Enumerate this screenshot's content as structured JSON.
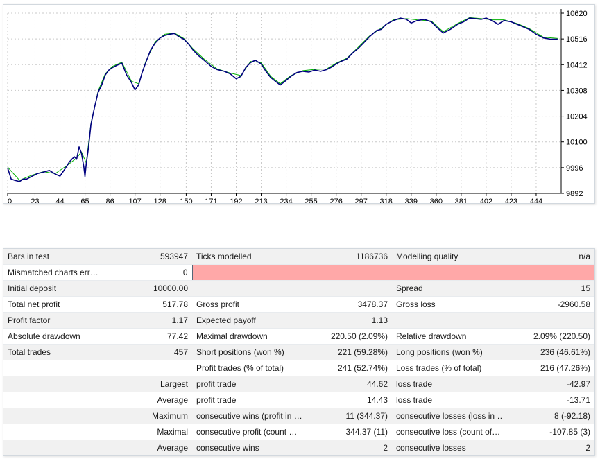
{
  "chart_data": {
    "type": "line",
    "xlim": [
      0,
      465
    ],
    "ylim": [
      9892,
      10620
    ],
    "x_ticks": [
      "0",
      "23",
      "44",
      "65",
      "86",
      "107",
      "128",
      "150",
      "171",
      "192",
      "213",
      "234",
      "255",
      "276",
      "297",
      "318",
      "339",
      "360",
      "381",
      "402",
      "423",
      "444"
    ],
    "y_ticks": [
      "10620",
      "10516",
      "10412",
      "10308",
      "10204",
      "10100",
      "9996",
      "9892"
    ],
    "series": [
      {
        "color": "#00007f",
        "points": [
          [
            0,
            9995
          ],
          [
            3,
            9950
          ],
          [
            6,
            9945
          ],
          [
            10,
            9940
          ],
          [
            13,
            9950
          ],
          [
            16,
            9950
          ],
          [
            20,
            9960
          ],
          [
            25,
            9972
          ],
          [
            30,
            9978
          ],
          [
            35,
            9985
          ],
          [
            40,
            9970
          ],
          [
            44,
            9962
          ],
          [
            48,
            9990
          ],
          [
            52,
            10020
          ],
          [
            56,
            10040
          ],
          [
            58,
            10030
          ],
          [
            60,
            10080
          ],
          [
            62,
            10055
          ],
          [
            64,
            10000
          ],
          [
            65,
            9960
          ],
          [
            66,
            10010
          ],
          [
            68,
            10080
          ],
          [
            70,
            10170
          ],
          [
            73,
            10240
          ],
          [
            76,
            10300
          ],
          [
            79,
            10330
          ],
          [
            82,
            10370
          ],
          [
            85,
            10390
          ],
          [
            88,
            10400
          ],
          [
            92,
            10410
          ],
          [
            96,
            10418
          ],
          [
            100,
            10370
          ],
          [
            104,
            10340
          ],
          [
            107,
            10310
          ],
          [
            110,
            10330
          ],
          [
            113,
            10380
          ],
          [
            116,
            10420
          ],
          [
            120,
            10470
          ],
          [
            124,
            10500
          ],
          [
            128,
            10520
          ],
          [
            132,
            10530
          ],
          [
            136,
            10535
          ],
          [
            140,
            10538
          ],
          [
            144,
            10525
          ],
          [
            148,
            10515
          ],
          [
            152,
            10495
          ],
          [
            156,
            10470
          ],
          [
            160,
            10450
          ],
          [
            165,
            10430
          ],
          [
            171,
            10405
          ],
          [
            176,
            10392
          ],
          [
            182,
            10385
          ],
          [
            187,
            10375
          ],
          [
            192,
            10355
          ],
          [
            196,
            10365
          ],
          [
            200,
            10400
          ],
          [
            204,
            10420
          ],
          [
            208,
            10430
          ],
          [
            213,
            10415
          ],
          [
            217,
            10385
          ],
          [
            221,
            10360
          ],
          [
            225,
            10345
          ],
          [
            229,
            10330
          ],
          [
            233,
            10345
          ],
          [
            238,
            10365
          ],
          [
            243,
            10380
          ],
          [
            248,
            10385
          ],
          [
            253,
            10382
          ],
          [
            258,
            10390
          ],
          [
            263,
            10385
          ],
          [
            268,
            10392
          ],
          [
            272,
            10402
          ],
          [
            276,
            10415
          ],
          [
            280,
            10425
          ],
          [
            285,
            10435
          ],
          [
            290,
            10460
          ],
          [
            295,
            10480
          ],
          [
            299,
            10500
          ],
          [
            304,
            10525
          ],
          [
            310,
            10550
          ],
          [
            314,
            10555
          ],
          [
            318,
            10575
          ],
          [
            324,
            10590
          ],
          [
            330,
            10600
          ],
          [
            335,
            10595
          ],
          [
            339,
            10580
          ],
          [
            344,
            10590
          ],
          [
            350,
            10595
          ],
          [
            356,
            10585
          ],
          [
            360,
            10565
          ],
          [
            366,
            10540
          ],
          [
            372,
            10555
          ],
          [
            378,
            10575
          ],
          [
            383,
            10585
          ],
          [
            388,
            10600
          ],
          [
            393,
            10598
          ],
          [
            398,
            10595
          ],
          [
            402,
            10600
          ],
          [
            407,
            10590
          ],
          [
            412,
            10575
          ],
          [
            417,
            10590
          ],
          [
            423,
            10585
          ],
          [
            428,
            10575
          ],
          [
            433,
            10565
          ],
          [
            438,
            10555
          ],
          [
            444,
            10535
          ],
          [
            450,
            10520
          ],
          [
            456,
            10515
          ],
          [
            462,
            10515
          ]
        ]
      },
      {
        "color": "#00b000",
        "points": [
          [
            0,
            9998
          ],
          [
            10,
            9945
          ],
          [
            20,
            9965
          ],
          [
            30,
            9980
          ],
          [
            40,
            9972
          ],
          [
            50,
            10005
          ],
          [
            58,
            10035
          ],
          [
            62,
            10060
          ],
          [
            66,
            10015
          ],
          [
            70,
            10175
          ],
          [
            76,
            10305
          ],
          [
            82,
            10375
          ],
          [
            88,
            10405
          ],
          [
            96,
            10422
          ],
          [
            104,
            10345
          ],
          [
            110,
            10335
          ],
          [
            116,
            10425
          ],
          [
            124,
            10505
          ],
          [
            132,
            10535
          ],
          [
            140,
            10540
          ],
          [
            148,
            10518
          ],
          [
            156,
            10475
          ],
          [
            165,
            10435
          ],
          [
            176,
            10395
          ],
          [
            187,
            10378
          ],
          [
            196,
            10368
          ],
          [
            204,
            10425
          ],
          [
            213,
            10420
          ],
          [
            221,
            10365
          ],
          [
            229,
            10335
          ],
          [
            238,
            10368
          ],
          [
            248,
            10388
          ],
          [
            258,
            10393
          ],
          [
            268,
            10395
          ],
          [
            276,
            10418
          ],
          [
            285,
            10438
          ],
          [
            295,
            10485
          ],
          [
            304,
            10528
          ],
          [
            314,
            10560
          ],
          [
            324,
            10593
          ],
          [
            335,
            10598
          ],
          [
            344,
            10593
          ],
          [
            356,
            10588
          ],
          [
            366,
            10545
          ],
          [
            378,
            10578
          ],
          [
            388,
            10602
          ],
          [
            398,
            10598
          ],
          [
            407,
            10593
          ],
          [
            417,
            10593
          ],
          [
            428,
            10578
          ],
          [
            438,
            10558
          ],
          [
            450,
            10523
          ],
          [
            462,
            10518
          ]
        ]
      }
    ]
  },
  "report": {
    "rows": [
      [
        "Bars in test",
        "593947",
        "Ticks modelled",
        "1186736",
        "Modelling quality",
        "n/a"
      ],
      [
        "Mismatched charts err…",
        "0",
        "",
        "",
        "",
        ""
      ],
      [
        "Initial deposit",
        "10000.00",
        "",
        "",
        "Spread",
        "15"
      ],
      [
        "Total net profit",
        "517.78",
        "Gross profit",
        "3478.37",
        "Gross loss",
        "-2960.58"
      ],
      [
        "Profit factor",
        "1.17",
        "Expected payoff",
        "1.13",
        "",
        ""
      ],
      [
        "Absolute drawdown",
        "77.42",
        "Maximal drawdown",
        "220.50 (2.09%)",
        "Relative drawdown",
        "2.09% (220.50)"
      ],
      [
        "Total trades",
        "457",
        "Short positions (won %)",
        "221 (59.28%)",
        "Long positions (won %)",
        "236 (46.61%)"
      ],
      [
        "",
        "",
        "Profit trades (% of total)",
        "241 (52.74%)",
        "Loss trades (% of total)",
        "216 (47.26%)"
      ],
      [
        "",
        "Largest",
        "profit trade",
        "44.62",
        "loss trade",
        "-42.97"
      ],
      [
        "",
        "Average",
        "profit trade",
        "14.43",
        "loss trade",
        "-13.71"
      ],
      [
        "",
        "Maximum",
        "consecutive wins (profit in …",
        "11 (344.37)",
        "consecutive losses (loss in …",
        "8 (-92.18)"
      ],
      [
        "",
        "Maximal",
        "consecutive profit (count …",
        "344.37 (11)",
        "consecutive loss (count of…",
        "-107.85 (3)"
      ],
      [
        "",
        "Average",
        "consecutive wins",
        "2",
        "consecutive losses",
        "2"
      ]
    ]
  }
}
